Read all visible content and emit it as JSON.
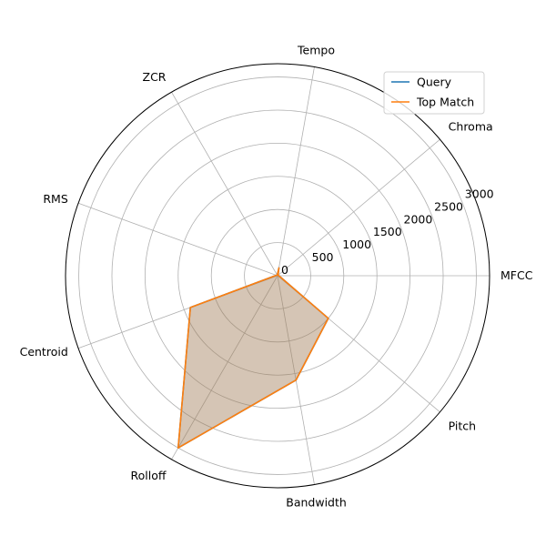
{
  "chart_data": {
    "type": "radar",
    "categories": [
      "MFCC",
      "Chroma",
      "Tempo",
      "ZCR",
      "RMS",
      "Centroid",
      "Rolloff",
      "Bandwidth",
      "Pitch"
    ],
    "rticks": [
      0,
      500,
      1000,
      1500,
      2000,
      2500,
      3000
    ],
    "rlim": [
      0,
      3200
    ],
    "grid": true,
    "legend_position": "top-right",
    "series": [
      {
        "name": "Query",
        "color": "#1f77b4",
        "values": [
          20,
          10,
          120,
          10,
          20,
          1400,
          3000,
          1600,
          1000
        ]
      },
      {
        "name": "Top Match",
        "color": "#ff7f0e",
        "values": [
          20,
          10,
          120,
          10,
          20,
          1400,
          3000,
          1600,
          1000
        ]
      }
    ]
  }
}
